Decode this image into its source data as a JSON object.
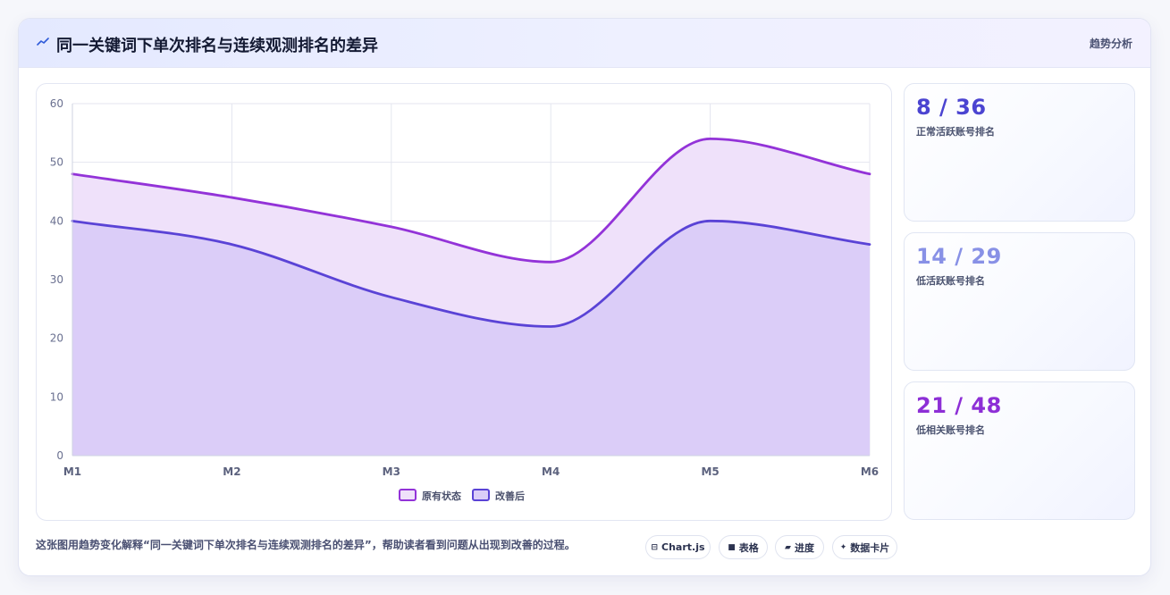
{
  "header": {
    "icon": "trend-line-icon",
    "title": "同一关键词下单次排名与连续观测排名的差异",
    "tag": "趋势分析"
  },
  "chart_data": {
    "type": "area",
    "categories": [
      "M1",
      "M2",
      "M3",
      "M4",
      "M5",
      "M6"
    ],
    "series": [
      {
        "name": "原有状态",
        "values": [
          48,
          44,
          39,
          33,
          54,
          48
        ],
        "color": "#9333d8",
        "fill": "#efe1fa"
      },
      {
        "name": "改善后",
        "values": [
          40,
          36,
          27,
          22,
          40,
          36
        ],
        "color": "#5a43d6",
        "fill": "#dbcdf8"
      }
    ],
    "ylim": [
      0,
      60
    ],
    "yticks": [
      0,
      10,
      20,
      30,
      40,
      50,
      60
    ],
    "grid": true,
    "legend": "bottom",
    "smooth": true
  },
  "stats": [
    {
      "value": "8 / 36",
      "label": "正常活跃账号排名",
      "color": "#4b44d1"
    },
    {
      "value": "14 / 29",
      "label": "低活跃账号排名",
      "color": "#8891e6"
    },
    {
      "value": "21 / 48",
      "label": "低相关账号排名",
      "color": "#8d2fd6"
    }
  ],
  "footer": {
    "caption": "这张图用趋势变化解释“同一关键词下单次排名与连续观测排名的差异”，帮助读者看到问题从出现到改善的过程。",
    "pills": [
      {
        "icon": "window-icon",
        "glyph": "⊟",
        "label": "Chart.js"
      },
      {
        "icon": "table-icon",
        "glyph": "■",
        "label": "表格"
      },
      {
        "icon": "progress-icon",
        "glyph": "▰",
        "label": "进度"
      },
      {
        "icon": "sparkle-icon",
        "glyph": "✦",
        "label": "数据卡片"
      }
    ]
  }
}
